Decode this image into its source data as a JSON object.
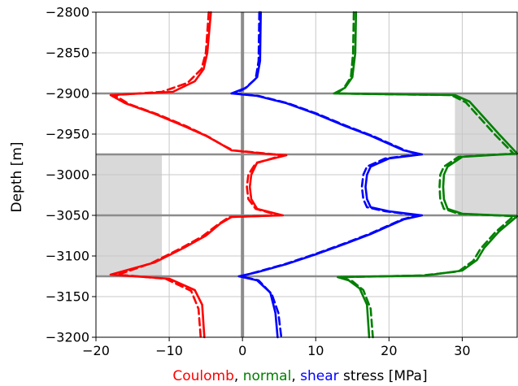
{
  "chart_data": {
    "type": "line",
    "xlabel_parts": [
      {
        "text": "Coulomb",
        "color": "#ff0000"
      },
      {
        "text": ", ",
        "color": "#000000"
      },
      {
        "text": "normal",
        "color": "#008000"
      },
      {
        "text": ", ",
        "color": "#000000"
      },
      {
        "text": "shear",
        "color": "#0000ff"
      },
      {
        "text": " stress [MPa]",
        "color": "#000000"
      }
    ],
    "ylabel": "Depth [m]",
    "xlim": [
      -20,
      37.5
    ],
    "ylim": [
      -3200,
      -2800
    ],
    "xticks": [
      -20,
      -10,
      0,
      10,
      20,
      30
    ],
    "xtick_labels": [
      "−20",
      "−10",
      "0",
      "10",
      "20",
      "30"
    ],
    "yticks": [
      -2800,
      -2850,
      -2900,
      -2950,
      -3000,
      -3050,
      -3100,
      -3150,
      -3200
    ],
    "ytick_labels": [
      "−2800",
      "−2850",
      "−2900",
      "−2950",
      "−3000",
      "−3050",
      "−3100",
      "−3150",
      "−3200"
    ],
    "grid": true,
    "horizontal_lines_depth": [
      -2900,
      -2975,
      -3050,
      -3125
    ],
    "vertical_zero_line": 0,
    "shaded_regions": [
      {
        "x": [
          -20,
          -11
        ],
        "y": [
          -3125,
          -2975
        ]
      },
      {
        "x": [
          29,
          37.5
        ],
        "y": [
          -2975,
          -2900
        ]
      },
      {
        "x": [
          29,
          37.5
        ],
        "y": [
          -3050,
          -2975
        ]
      }
    ],
    "series": [
      {
        "color": "#ff0000",
        "style": "solid",
        "points": [
          [
            -4.3,
            -2800
          ],
          [
            -4.8,
            -2850
          ],
          [
            -5.3,
            -2870
          ],
          [
            -6.5,
            -2885
          ],
          [
            -9.5,
            -2898
          ],
          [
            -18,
            -2902
          ],
          [
            -16,
            -2912
          ],
          [
            -12,
            -2925
          ],
          [
            -8,
            -2940
          ],
          [
            -5,
            -2952
          ],
          [
            -3,
            -2962
          ],
          [
            -1.5,
            -2970
          ],
          [
            4,
            -2975
          ],
          [
            6,
            -2976
          ],
          [
            2,
            -2985
          ],
          [
            1.2,
            -3000
          ],
          [
            1.0,
            -3015
          ],
          [
            1.2,
            -3030
          ],
          [
            2,
            -3042
          ],
          [
            5.5,
            -3050
          ],
          [
            -1.5,
            -3052
          ],
          [
            -3,
            -3060
          ],
          [
            -5,
            -3075
          ],
          [
            -8,
            -3090
          ],
          [
            -12,
            -3108
          ],
          [
            -18,
            -3123
          ],
          [
            -10,
            -3128
          ],
          [
            -6.5,
            -3142
          ],
          [
            -5.5,
            -3160
          ],
          [
            -5.2,
            -3200
          ]
        ]
      },
      {
        "color": "#ff0000",
        "style": "dashed",
        "points": [
          [
            -4.6,
            -2800
          ],
          [
            -5.0,
            -2850
          ],
          [
            -5.6,
            -2870
          ],
          [
            -7.5,
            -2887
          ],
          [
            -11,
            -2898
          ],
          [
            -17.5,
            -2902
          ],
          [
            -15.5,
            -2913
          ],
          [
            -11.5,
            -2926
          ],
          [
            -7.5,
            -2941
          ],
          [
            -4.7,
            -2953
          ],
          [
            -2.8,
            -2963
          ],
          [
            -1.3,
            -2970
          ],
          [
            4.5,
            -2975
          ],
          [
            5.5,
            -2976
          ],
          [
            1.8,
            -2986
          ],
          [
            0.8,
            -3000
          ],
          [
            0.6,
            -3015
          ],
          [
            0.8,
            -3030
          ],
          [
            1.8,
            -3042
          ],
          [
            5,
            -3050
          ],
          [
            -1.8,
            -3052
          ],
          [
            -3.3,
            -3061
          ],
          [
            -5.5,
            -3076
          ],
          [
            -8.5,
            -3091
          ],
          [
            -12.5,
            -3109
          ],
          [
            -17,
            -3123
          ],
          [
            -10.5,
            -3128
          ],
          [
            -7,
            -3143
          ],
          [
            -6,
            -3165
          ],
          [
            -5.7,
            -3200
          ]
        ]
      },
      {
        "color": "#0000ff",
        "style": "solid",
        "points": [
          [
            2.5,
            -2800
          ],
          [
            2.4,
            -2860
          ],
          [
            2.0,
            -2880
          ],
          [
            0.5,
            -2893
          ],
          [
            -1.5,
            -2900
          ],
          [
            2,
            -2903
          ],
          [
            6,
            -2912
          ],
          [
            10,
            -2925
          ],
          [
            14,
            -2940
          ],
          [
            17.5,
            -2952
          ],
          [
            20,
            -2962
          ],
          [
            22,
            -2970
          ],
          [
            24.5,
            -2975
          ],
          [
            20,
            -2980
          ],
          [
            17.5,
            -2990
          ],
          [
            17,
            -3000
          ],
          [
            16.8,
            -3015
          ],
          [
            17,
            -3030
          ],
          [
            17.5,
            -3040
          ],
          [
            20,
            -3045
          ],
          [
            24.5,
            -3050
          ],
          [
            22,
            -3055
          ],
          [
            20,
            -3063
          ],
          [
            17.5,
            -3073
          ],
          [
            14,
            -3085
          ],
          [
            10,
            -3098
          ],
          [
            6,
            -3110
          ],
          [
            2,
            -3120
          ],
          [
            -0.5,
            -3125
          ],
          [
            2,
            -3130
          ],
          [
            3.8,
            -3145
          ],
          [
            4.5,
            -3170
          ],
          [
            4.8,
            -3200
          ]
        ]
      },
      {
        "color": "#0000ff",
        "style": "dashed",
        "points": [
          [
            2.3,
            -2800
          ],
          [
            2.2,
            -2860
          ],
          [
            1.8,
            -2882
          ],
          [
            0.3,
            -2894
          ],
          [
            -1,
            -2900
          ],
          [
            2.2,
            -2903
          ],
          [
            6.2,
            -2912
          ],
          [
            10.2,
            -2925
          ],
          [
            14.2,
            -2940
          ],
          [
            17.7,
            -2952
          ],
          [
            20.2,
            -2962
          ],
          [
            22.2,
            -2970
          ],
          [
            24,
            -2975
          ],
          [
            19.5,
            -2980
          ],
          [
            17,
            -2990
          ],
          [
            16.5,
            -3000
          ],
          [
            16.3,
            -3015
          ],
          [
            16.5,
            -3030
          ],
          [
            17,
            -3040
          ],
          [
            19.5,
            -3045
          ],
          [
            24,
            -3050
          ],
          [
            21.8,
            -3055
          ],
          [
            19.8,
            -3063
          ],
          [
            17.3,
            -3073
          ],
          [
            13.8,
            -3085
          ],
          [
            9.8,
            -3098
          ],
          [
            5.8,
            -3110
          ],
          [
            1.8,
            -3120
          ],
          [
            -0.2,
            -3125
          ],
          [
            2.2,
            -3130
          ],
          [
            4,
            -3147
          ],
          [
            4.9,
            -3170
          ],
          [
            5.3,
            -3200
          ]
        ]
      },
      {
        "color": "#008000",
        "style": "solid",
        "points": [
          [
            15.5,
            -2800
          ],
          [
            15.4,
            -2850
          ],
          [
            15.0,
            -2880
          ],
          [
            14.0,
            -2893
          ],
          [
            12.5,
            -2900
          ],
          [
            20,
            -2901
          ],
          [
            29,
            -2902
          ],
          [
            31,
            -2910
          ],
          [
            33,
            -2930
          ],
          [
            35,
            -2950
          ],
          [
            37.5,
            -2974
          ],
          [
            30,
            -2978
          ],
          [
            28,
            -2990
          ],
          [
            27.5,
            -3000
          ],
          [
            27.4,
            -3015
          ],
          [
            27.5,
            -3030
          ],
          [
            28,
            -3042
          ],
          [
            30,
            -3048
          ],
          [
            37.5,
            -3051
          ],
          [
            35,
            -3070
          ],
          [
            33,
            -3090
          ],
          [
            32,
            -3105
          ],
          [
            30,
            -3118
          ],
          [
            25,
            -3124
          ],
          [
            13,
            -3126
          ],
          [
            14.5,
            -3130
          ],
          [
            16,
            -3140
          ],
          [
            17,
            -3160
          ],
          [
            17.3,
            -3200
          ]
        ]
      },
      {
        "color": "#008000",
        "style": "dashed",
        "points": [
          [
            15.2,
            -2800
          ],
          [
            15.1,
            -2850
          ],
          [
            14.8,
            -2880
          ],
          [
            13.8,
            -2894
          ],
          [
            12.8,
            -2900
          ],
          [
            20,
            -2901
          ],
          [
            28.5,
            -2902
          ],
          [
            30.5,
            -2911
          ],
          [
            32.5,
            -2931
          ],
          [
            34.5,
            -2951
          ],
          [
            37,
            -2974
          ],
          [
            29.5,
            -2978
          ],
          [
            27.5,
            -2990
          ],
          [
            27,
            -3000
          ],
          [
            26.9,
            -3015
          ],
          [
            27,
            -3030
          ],
          [
            27.5,
            -3042
          ],
          [
            29.5,
            -3048
          ],
          [
            37,
            -3051
          ],
          [
            34.5,
            -3071
          ],
          [
            32.5,
            -3091
          ],
          [
            31.5,
            -3106
          ],
          [
            29.5,
            -3119
          ],
          [
            24.5,
            -3124
          ],
          [
            13.5,
            -3126
          ],
          [
            15,
            -3131
          ],
          [
            16.5,
            -3142
          ],
          [
            17.5,
            -3165
          ],
          [
            17.8,
            -3200
          ]
        ]
      }
    ]
  }
}
